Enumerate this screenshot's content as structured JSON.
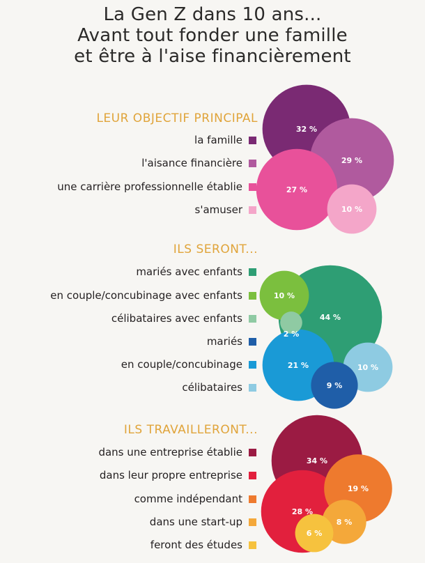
{
  "title": {
    "line1": "La Gen Z dans 10 ans...",
    "line2": "Avant tout fonder une famille",
    "line3": "et être à l'aise financièrement"
  },
  "chart_data": [
    {
      "type": "bubble",
      "title": "LEUR OBJECTIF PRINCIPAL",
      "series": [
        {
          "label": "la famille",
          "value": 32,
          "value_label": "32 %",
          "color": "#7a2a73"
        },
        {
          "label": "l'aisance financière",
          "value": 29,
          "value_label": "29 %",
          "color": "#b05a9e"
        },
        {
          "label": "une carrière professionnelle établie",
          "value": 27,
          "value_label": "27 %",
          "color": "#e8519a"
        },
        {
          "label": "s'amuser",
          "value": 10,
          "value_label": "10 %",
          "color": "#f4a6c9"
        }
      ]
    },
    {
      "type": "bubble",
      "title": "ILS SERONT...",
      "series": [
        {
          "label": "mariés avec enfants",
          "value": 44,
          "value_label": "44 %",
          "color": "#2e9e74"
        },
        {
          "label": "en couple/concubinage avec enfants",
          "value": 10,
          "value_label": "10 %",
          "color": "#7bbf3e"
        },
        {
          "label": "célibataires avec enfants",
          "value": 2,
          "value_label": "2 %",
          "color": "#8fcaa3"
        },
        {
          "label": "mariés",
          "value": 9,
          "value_label": "9 %",
          "color": "#1f5ea8"
        },
        {
          "label": "en couple/concubinage",
          "value": 21,
          "value_label": "21 %",
          "color": "#1a9ad6"
        },
        {
          "label": "célibataires",
          "value": 10,
          "value_label": "10 %",
          "color": "#8ecbe2"
        }
      ]
    },
    {
      "type": "bubble",
      "title": "ILS TRAVAILLERONT...",
      "series": [
        {
          "label": "dans une entreprise établie",
          "value": 34,
          "value_label": "34 %",
          "color": "#9b1b43"
        },
        {
          "label": "dans leur propre entreprise",
          "value": 28,
          "value_label": "28 %",
          "color": "#e2203d"
        },
        {
          "label": "comme indépendant",
          "value": 19,
          "value_label": "19 %",
          "color": "#ee7a2e"
        },
        {
          "label": "dans une start-up",
          "value": 8,
          "value_label": "8 %",
          "color": "#f4a83a"
        },
        {
          "label": "feront des études",
          "value": 6,
          "value_label": "6 %",
          "color": "#f6c23e"
        }
      ]
    }
  ]
}
